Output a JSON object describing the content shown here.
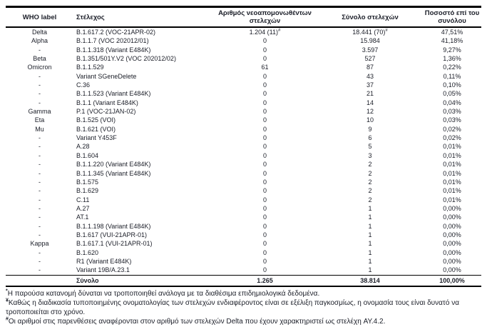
{
  "table": {
    "columns": [
      "WHO label",
      "Στέλεχος",
      "Αριθμός νεοαπομονωθέντων στελεχών",
      "Σύνολο στελεχών",
      "Ποσοστό επί του συνόλου"
    ],
    "rows": [
      {
        "who": "Delta",
        "strain": "B.1.617.2 (VOC-21APR-02)",
        "new": "1.204 (11)",
        "new_sup": "#",
        "total": "18.441 (70)",
        "total_sup": "#",
        "pct": "47,51%"
      },
      {
        "who": "Alpha",
        "strain": "B.1.1.7 (VOC 202012/01)",
        "new": "0",
        "total": "15.984",
        "pct": "41,18%"
      },
      {
        "who": "-",
        "strain": "B.1.1.318 (Variant E484K)",
        "new": "0",
        "total": "3.597",
        "pct": "9,27%"
      },
      {
        "who": "Beta",
        "strain": "B.1.351/501Y.V2 (VOC 202012/02)",
        "new": "0",
        "total": "527",
        "pct": "1,36%"
      },
      {
        "who": "Omicron",
        "strain": "B.1.1.529",
        "new": "61",
        "total": "87",
        "pct": "0,22%"
      },
      {
        "who": "-",
        "strain": "Variant SGeneDelete",
        "new": "0",
        "total": "43",
        "pct": "0,11%"
      },
      {
        "who": "-",
        "strain": "C.36",
        "new": "0",
        "total": "37",
        "pct": "0,10%"
      },
      {
        "who": "-",
        "strain": "B.1.1.523 (Variant E484K)",
        "new": "0",
        "total": "21",
        "pct": "0,05%"
      },
      {
        "who": "-",
        "strain": "B.1.1 (Variant E484K)",
        "new": "0",
        "total": "14",
        "pct": "0,04%"
      },
      {
        "who": "Gamma",
        "strain": "P.1 (VOC-21JAN-02)",
        "new": "0",
        "total": "12",
        "pct": "0,03%"
      },
      {
        "who": "Eta",
        "strain": "B.1.525 (VOI)",
        "new": "0",
        "total": "10",
        "pct": "0,03%"
      },
      {
        "who": "Mu",
        "strain": "B.1.621 (VOI)",
        "new": "0",
        "total": "9",
        "pct": "0,02%"
      },
      {
        "who": "-",
        "strain": "Variant Y453F",
        "new": "0",
        "total": "6",
        "pct": "0,02%"
      },
      {
        "who": "-",
        "strain": "A.28",
        "new": "0",
        "total": "5",
        "pct": "0,01%"
      },
      {
        "who": "-",
        "strain": "B.1.604",
        "new": "0",
        "total": "3",
        "pct": "0,01%"
      },
      {
        "who": "-",
        "strain": "B.1.1.220 (Variant E484K)",
        "new": "0",
        "total": "2",
        "pct": "0,01%"
      },
      {
        "who": "-",
        "strain": "B.1.1.345 (Variant E484K)",
        "new": "0",
        "total": "2",
        "pct": "0,01%"
      },
      {
        "who": "-",
        "strain": "B.1.575",
        "new": "0",
        "total": "2",
        "pct": "0,01%"
      },
      {
        "who": "-",
        "strain": "B.1.629",
        "new": "0",
        "total": "2",
        "pct": "0,01%"
      },
      {
        "who": "-",
        "strain": "C.11",
        "new": "0",
        "total": "2",
        "pct": "0,01%"
      },
      {
        "who": "-",
        "strain": "A.27",
        "new": "0",
        "total": "1",
        "pct": "0,00%"
      },
      {
        "who": "-",
        "strain": "AT.1",
        "new": "0",
        "total": "1",
        "pct": "0,00%"
      },
      {
        "who": "-",
        "strain": "B.1.1.198 (Variant E484K)",
        "new": "0",
        "total": "1",
        "pct": "0,00%"
      },
      {
        "who": "-",
        "strain": "B.1.617 (VUI-21APR-01)",
        "new": "0",
        "total": "1",
        "pct": "0,00%"
      },
      {
        "who": "Kappa",
        "strain": "B.1.617.1 (VUI-21APR-01)",
        "new": "0",
        "total": "1",
        "pct": "0,00%"
      },
      {
        "who": "-",
        "strain": "B.1.620",
        "new": "0",
        "total": "1",
        "pct": "0,00%"
      },
      {
        "who": "-",
        "strain": "R1 (Variant E484K)",
        "new": "0",
        "total": "1",
        "pct": "0,00%"
      },
      {
        "who": "-",
        "strain": "Variant 19B/A.23.1",
        "new": "0",
        "total": "1",
        "pct": "0,00%"
      }
    ],
    "total_row": {
      "who": "",
      "label": "Σύνολο",
      "new": "1.265",
      "total": "38.814",
      "pct": "100,00%"
    }
  },
  "footnotes": [
    {
      "sup": "*",
      "text": "Η παρούσα κατανομή δύναται να τροποποιηθεί ανάλογα με τα διαθέσιμα επιδημιολογικά δεδομένα."
    },
    {
      "sup": "¥",
      "text": "Καθώς η διαδικασία τυποποιημένης ονοματολογίας των στελεχών ενδιαφέροντος είναι σε εξέλιξη παγκοσμίως, η ονομασία τους είναι δυνατό να τροποποιείται στο χρόνο."
    },
    {
      "sup": "#",
      "text": "Οι αριθμοί στις παρενθέσεις αναφέρονται στον αριθμό των στελεχών Delta που έχουν χαρακτηριστεί ως στελέχη AY.4.2."
    }
  ]
}
